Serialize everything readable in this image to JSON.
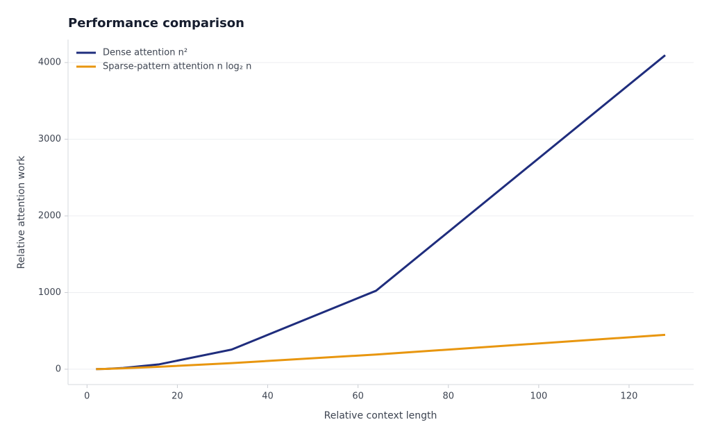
{
  "chart_data": {
    "type": "line",
    "title": "Performance comparison",
    "x_label": "Relative context length",
    "y_label": "Relative attention work",
    "x": [
      2,
      4,
      8,
      16,
      32,
      64,
      128
    ],
    "series": [
      {
        "name": "Dense attention n²",
        "color": "#1f2d7d",
        "values": [
          1,
          4,
          16,
          64,
          256,
          1024,
          4096
        ]
      },
      {
        "name": "Sparse-pattern attention n log₂ n",
        "color": "#e8960f",
        "values": [
          1,
          4,
          12,
          32,
          80,
          192,
          448
        ]
      }
    ],
    "xlim": [
      -4.2,
      134.3
    ],
    "ylim": [
      -200,
      4300
    ],
    "xticks": [
      0,
      20,
      40,
      60,
      80,
      100,
      120
    ],
    "yticks": [
      0,
      1000,
      2000,
      3000,
      4000
    ],
    "grid": true,
    "legend": "upper-left"
  }
}
